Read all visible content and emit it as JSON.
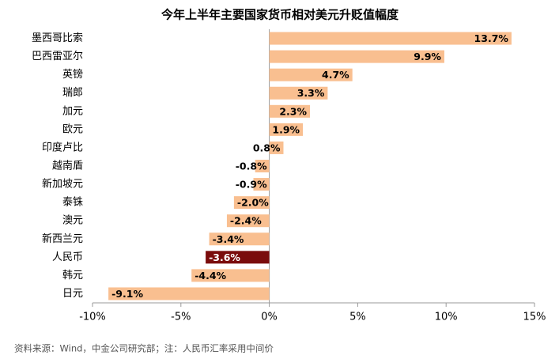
{
  "chart_data": {
    "type": "hbar",
    "title": "今年上半年主要国家货币相对美元升贬值幅度",
    "categories": [
      "墨西哥比索",
      "巴西雷亚尔",
      "英镑",
      "瑞郎",
      "加元",
      "欧元",
      "印度卢比",
      "越南盾",
      "新加坡元",
      "泰铢",
      "澳元",
      "新西兰元",
      "人民币",
      "韩元",
      "日元"
    ],
    "values": [
      13.7,
      9.9,
      4.7,
      3.3,
      2.3,
      1.9,
      0.8,
      -0.8,
      -0.9,
      -2.0,
      -2.4,
      -3.4,
      -3.6,
      -4.4,
      -9.1
    ],
    "value_labels": [
      "13.7%",
      "9.9%",
      "4.7%",
      "3.3%",
      "2.3%",
      "1.9%",
      "0.8%",
      "-0.8%",
      "-0.9%",
      "-2.0%",
      "-2.4%",
      "-3.4%",
      "-3.6%",
      "-4.4%",
      "-9.1%"
    ],
    "colors": [
      "#f9bf90",
      "#f9bf90",
      "#f9bf90",
      "#f9bf90",
      "#f9bf90",
      "#f9bf90",
      "#f9bf90",
      "#f9bf90",
      "#f9bf90",
      "#f9bf90",
      "#f9bf90",
      "#f9bf90",
      "#7a0c0c",
      "#f9bf90",
      "#f9bf90"
    ],
    "xlim": [
      -10,
      15
    ],
    "xticks": [
      {
        "value": -10,
        "label": "-10%"
      },
      {
        "value": -5,
        "label": "-5%"
      },
      {
        "value": 0,
        "label": "0%"
      },
      {
        "value": 5,
        "label": "5%"
      },
      {
        "value": 10,
        "label": "10%"
      },
      {
        "value": 15,
        "label": "15%"
      }
    ],
    "source": "资料来源：Wind，中金公司研究部；注：人民币汇率采用中间价"
  }
}
